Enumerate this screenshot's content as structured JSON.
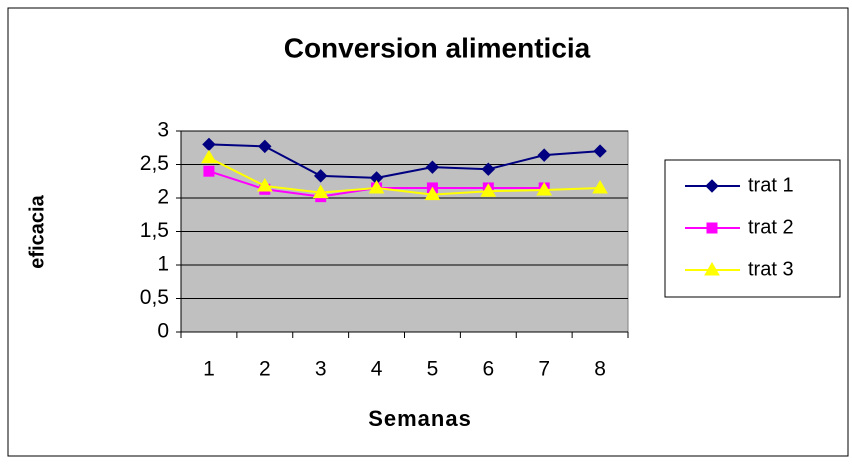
{
  "chart_data": {
    "type": "line",
    "title": "Conversion alimenticia",
    "x_label": "Semanas",
    "y_label": "eficacia",
    "categories": [
      "1",
      "2",
      "3",
      "4",
      "5",
      "6",
      "7",
      "8"
    ],
    "series": [
      {
        "name": "trat 1",
        "color": "#000080",
        "marker": "diamond",
        "values": [
          2.8,
          2.77,
          2.33,
          2.3,
          2.46,
          2.43,
          2.64,
          2.7
        ]
      },
      {
        "name": "trat 2",
        "color": "#ff00ff",
        "marker": "square",
        "values": [
          2.4,
          2.13,
          2.02,
          2.15,
          2.15,
          2.15,
          2.15,
          null
        ]
      },
      {
        "name": "trat 3",
        "color": "#ffff00",
        "marker": "triangle",
        "values": [
          2.6,
          2.18,
          2.08,
          2.15,
          2.05,
          2.1,
          2.12,
          2.15
        ]
      }
    ],
    "ylim": [
      0,
      3
    ],
    "yticks": [
      0,
      {
        "value": 0.5,
        "label": "0,5"
      },
      1,
      {
        "value": 1.5,
        "label": "1,5"
      },
      2,
      {
        "value": 2.5,
        "label": "2,5"
      },
      3
    ],
    "grid": true,
    "legend": "right"
  }
}
